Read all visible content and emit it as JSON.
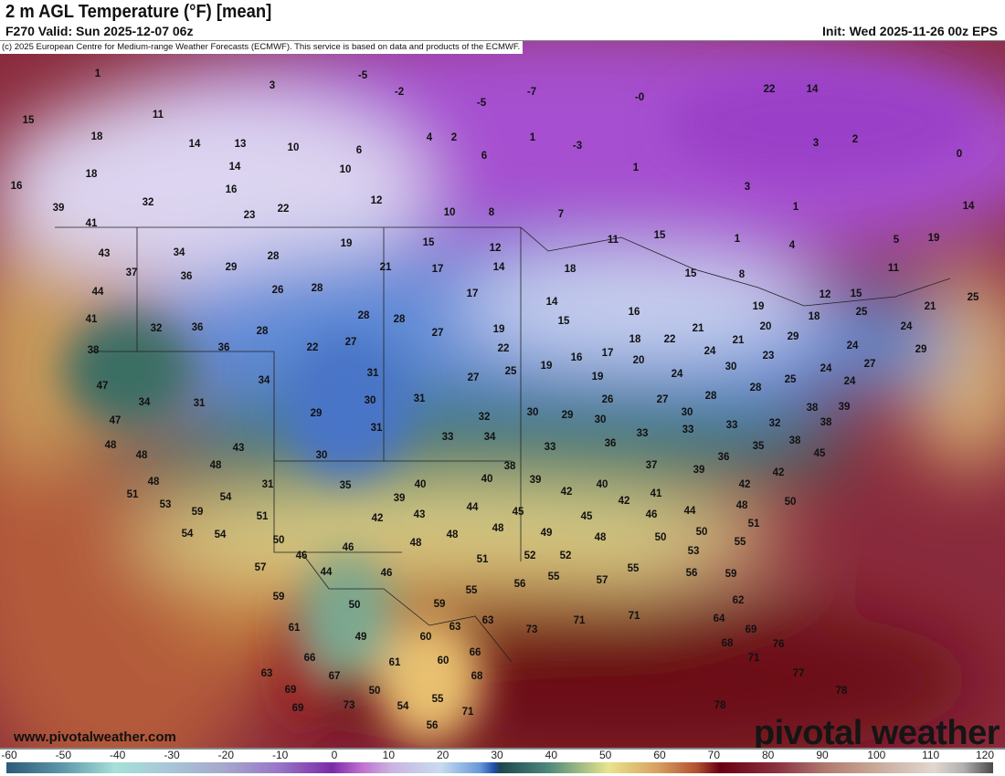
{
  "header": {
    "title": "2 m AGL Temperature (°F) [mean]",
    "valid": "F270 Valid: Sun 2025-12-07 06z",
    "init": "Init: Wed 2025-11-26 00z EPS",
    "copyright": "(c) 2025 European Centre for Medium-range Weather Forecasts (ECMWF). This service is based on data and products of the ECMWF."
  },
  "footer": {
    "website": "www.pivotalweather.com",
    "logo": "pivotal weather"
  },
  "colorbar": {
    "units": "°F",
    "ticks": [
      "-60",
      "-50",
      "-40",
      "-30",
      "-20",
      "-10",
      "0",
      "10",
      "20",
      "30",
      "40",
      "50",
      "60",
      "70",
      "80",
      "90",
      "100",
      "110",
      "120"
    ]
  },
  "map": {
    "labels": [
      "1",
      "3",
      "-5",
      "-2",
      "-5",
      "-7",
      "-0",
      "15",
      "11",
      "18",
      "14",
      "13",
      "10",
      "6",
      "4",
      "2",
      "1",
      "-3",
      "6",
      "18",
      "14",
      "10",
      "1",
      "16",
      "16",
      "3",
      "3",
      "2",
      "0",
      "22",
      "14",
      "32",
      "39",
      "23",
      "22",
      "12",
      "10",
      "8",
      "7",
      "41",
      "43",
      "14",
      "1",
      "19",
      "15",
      "12",
      "11",
      "15",
      "1",
      "4",
      "5",
      "19",
      "34",
      "28",
      "37",
      "29",
      "21",
      "17",
      "14",
      "18",
      "15",
      "8",
      "11",
      "36",
      "44",
      "26",
      "28",
      "17",
      "14",
      "12",
      "15",
      "25",
      "21",
      "41",
      "32",
      "36",
      "28",
      "28",
      "28",
      "19",
      "15",
      "16",
      "19",
      "25",
      "18",
      "24",
      "38",
      "36",
      "22",
      "27",
      "27",
      "22",
      "17",
      "18",
      "22",
      "21",
      "21",
      "20",
      "29",
      "24",
      "29",
      "16",
      "19",
      "20",
      "24",
      "23",
      "27",
      "47",
      "34",
      "34",
      "31",
      "27",
      "25",
      "19",
      "24",
      "30",
      "25",
      "24",
      "24",
      "31",
      "29",
      "30",
      "31",
      "26",
      "27",
      "28",
      "28",
      "30",
      "29",
      "30",
      "38",
      "39",
      "47",
      "31",
      "33",
      "32",
      "34",
      "30",
      "33",
      "33",
      "33",
      "32",
      "38",
      "48",
      "43",
      "30",
      "33",
      "36",
      "38",
      "45",
      "48",
      "48",
      "38",
      "37",
      "39",
      "36",
      "35",
      "48",
      "31",
      "35",
      "40",
      "40",
      "39",
      "40",
      "42",
      "51",
      "54",
      "39",
      "42",
      "42",
      "41",
      "44",
      "42",
      "53",
      "59",
      "44",
      "45",
      "45",
      "46",
      "48",
      "50",
      "51",
      "42",
      "43",
      "54",
      "54",
      "50",
      "48",
      "48",
      "49",
      "48",
      "50",
      "50",
      "51",
      "46",
      "46",
      "48",
      "51",
      "52",
      "52",
      "53",
      "55",
      "57",
      "44",
      "46",
      "55",
      "56",
      "55",
      "57",
      "55",
      "56",
      "59",
      "59",
      "50",
      "59",
      "62",
      "61",
      "49",
      "63",
      "63",
      "73",
      "71",
      "71",
      "64",
      "69",
      "60",
      "68",
      "76",
      "66",
      "61",
      "60",
      "66",
      "71",
      "63",
      "67",
      "68",
      "77",
      "69",
      "50",
      "55",
      "71",
      "78",
      "69",
      "73",
      "54",
      "78",
      "56"
    ]
  }
}
